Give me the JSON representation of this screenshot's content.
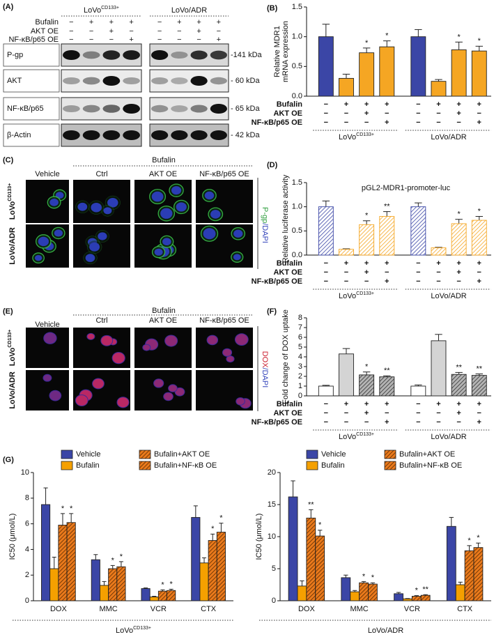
{
  "blot": {
    "panel": "(A)",
    "groups": [
      {
        "name": "LoVo",
        "sup": "CD133+"
      },
      {
        "name": "LoVo/ADR"
      }
    ],
    "rows": [
      {
        "label": "Bufalin",
        "signs": [
          "−",
          "+",
          "+",
          "+"
        ]
      },
      {
        "label": "AKT OE",
        "signs": [
          "−",
          "−",
          "+",
          "−"
        ]
      },
      {
        "label": "NF-κB/p65 OE",
        "signs": [
          "−",
          "−",
          "−",
          "+"
        ]
      }
    ],
    "proteins": [
      {
        "name": "P-gp",
        "size": "-141 kDa"
      },
      {
        "name": "AKT",
        "size": "- 60 kDa"
      },
      {
        "name": "NF-κB/p65",
        "size": "- 65 kDa"
      },
      {
        "name": "β-Actin",
        "size": "- 42 kDa"
      }
    ]
  },
  "images": [
    {
      "panel": "(C)",
      "vehicle": "Vehicle",
      "treatment": "Bufalin",
      "columns": [
        "Ctrl",
        "AKT OE",
        "NF-κB/p65 OE"
      ],
      "rows": [
        {
          "name": "LoVo",
          "sup": "CD133+"
        },
        {
          "name": "LoVo/ADR"
        }
      ],
      "stain": [
        {
          "text": "P-gp",
          "color": "#2a9d3a"
        },
        {
          "text": "/DAPI",
          "color": "#3344bb"
        }
      ]
    },
    {
      "panel": "(E)",
      "vehicle": "Vehicle",
      "treatment": "Bufalin",
      "columns": [
        "Ctrl",
        "AKT OE",
        "NF-κB/p65 OE"
      ],
      "rows": [
        {
          "name": "LoVo",
          "sup": "CD133+"
        },
        {
          "name": "LoVo/ADR"
        }
      ],
      "stain": [
        {
          "text": "DOX",
          "color": "#cc2233"
        },
        {
          "text": "/DAPI",
          "color": "#3344bb"
        }
      ]
    }
  ],
  "chart_data": [
    {
      "type": "bar",
      "panel": "(B)",
      "ylabel": [
        "Relative MDR1",
        "mRNA expression"
      ],
      "ylim": [
        0,
        1.5
      ],
      "yticks": [
        {
          "value": 0,
          "label": "0.0"
        },
        {
          "value": 0.5,
          "label": "0.5"
        },
        {
          "value": 1,
          "label": "1.0"
        },
        {
          "value": 1.5,
          "label": "1.5"
        }
      ],
      "colors": [
        "#3b46a6",
        "#f5a623",
        "#f5a623",
        "#f5a623"
      ],
      "hatch": [
        false,
        false,
        false,
        false
      ],
      "groups": [
        {
          "name": "LoVo",
          "sup": "CD133+",
          "values": [
            1.0,
            0.3,
            0.73,
            0.83
          ],
          "errors": [
            0.21,
            0.07,
            0.08,
            0.1
          ],
          "stars": [
            null,
            null,
            "*",
            "*"
          ]
        },
        {
          "name": "LoVo/ADR",
          "values": [
            1.0,
            0.25,
            0.78,
            0.76
          ],
          "errors": [
            0.12,
            0.03,
            0.13,
            0.08
          ],
          "stars": [
            null,
            null,
            "*",
            "*"
          ]
        }
      ],
      "rows": [
        {
          "label": "Bufalin",
          "signs": [
            "−",
            "+",
            "+",
            "+"
          ]
        },
        {
          "label": "AKT OE",
          "signs": [
            "−",
            "−",
            "+",
            "−"
          ]
        },
        {
          "label": "NF-κB/p65 OE",
          "signs": [
            "−",
            "−",
            "−",
            "+"
          ]
        }
      ]
    },
    {
      "type": "bar",
      "panel": "(D)",
      "title": "pGL2-MDR1-promoter-luc",
      "ylabel": [
        "Relative luciferase activity"
      ],
      "ylim": [
        0,
        1.5
      ],
      "yticks": [
        {
          "value": 0,
          "label": "0.0"
        },
        {
          "value": 0.5,
          "label": "0.5"
        },
        {
          "value": 1,
          "label": "1.0"
        },
        {
          "value": 1.5,
          "label": "1.5"
        }
      ],
      "colors": [
        "#3b46a6",
        "#f5a623",
        "#f5a623",
        "#f5a623"
      ],
      "hatch": [
        true,
        true,
        true,
        true
      ],
      "groups": [
        {
          "name": "LoVo",
          "sup": "CD133+",
          "values": [
            1.0,
            0.12,
            0.63,
            0.8
          ],
          "errors": [
            0.12,
            0.01,
            0.08,
            0.1
          ],
          "stars": [
            null,
            null,
            "*",
            "**"
          ]
        },
        {
          "name": "LoVo/ADR",
          "values": [
            1.0,
            0.15,
            0.65,
            0.72
          ],
          "errors": [
            0.08,
            0.01,
            0.09,
            0.08
          ],
          "stars": [
            null,
            null,
            "*",
            "*"
          ]
        }
      ],
      "rows": [
        {
          "label": "Bufalin",
          "signs": [
            "−",
            "+",
            "+",
            "+"
          ]
        },
        {
          "label": "AKT OE",
          "signs": [
            "−",
            "−",
            "+",
            "−"
          ]
        },
        {
          "label": "NF-κB/p65 OE",
          "signs": [
            "−",
            "−",
            "−",
            "+"
          ]
        }
      ]
    },
    {
      "type": "bar",
      "panel": "(F)",
      "ylabel": [
        "Fold change of DOX uptake"
      ],
      "ylim": [
        0,
        8
      ],
      "yticks": [
        0,
        1,
        2,
        3,
        4,
        5,
        6,
        7,
        8
      ],
      "colors": [
        "#ffffff",
        "#d4d4d4",
        "#b4b4b4",
        "#b4b4b4"
      ],
      "hatch": [
        false,
        false,
        true,
        true
      ],
      "groups": [
        {
          "name": "LoVo",
          "sup": "CD133+",
          "values": [
            1.0,
            4.3,
            2.15,
            1.95
          ],
          "errors": [
            0.08,
            0.55,
            0.3,
            0.1
          ],
          "stars": [
            null,
            null,
            "*",
            "**"
          ]
        },
        {
          "name": "LoVo/ADR",
          "values": [
            1.0,
            5.65,
            2.2,
            2.1
          ],
          "errors": [
            0.12,
            0.65,
            0.2,
            0.15
          ],
          "stars": [
            null,
            null,
            "**",
            "**"
          ]
        }
      ],
      "rows": [
        {
          "label": "Bufalin",
          "signs": [
            "−",
            "+",
            "+",
            "+"
          ]
        },
        {
          "label": "AKT OE",
          "signs": [
            "−",
            "−",
            "+",
            "−"
          ]
        },
        {
          "label": "NF-κB/p65 OE",
          "signs": [
            "−",
            "−",
            "−",
            "+"
          ]
        }
      ]
    },
    {
      "type": "grouped_bar",
      "panel": "(G)",
      "ylabel": [
        "IC50 (μmol/L)"
      ],
      "ylim": [
        0,
        10
      ],
      "yticks": [
        0,
        2,
        4,
        6,
        8,
        10
      ],
      "categories": [
        "DOX",
        "MMC",
        "VCR",
        "CTX"
      ],
      "group": {
        "name": "LoVo",
        "sup": "CD133+"
      },
      "legend": "top",
      "series": [
        {
          "name": "Vehicle",
          "color": "#3b46a6",
          "hatch": false,
          "values": [
            7.5,
            3.2,
            0.95,
            6.5
          ],
          "errors": [
            1.3,
            0.4,
            0.05,
            0.9
          ],
          "stars": [
            null,
            null,
            null,
            null
          ]
        },
        {
          "name": "Bufalin",
          "color": "#f5a000",
          "hatch": false,
          "values": [
            2.5,
            1.2,
            0.3,
            2.95
          ],
          "errors": [
            0.9,
            0.3,
            0.05,
            0.4
          ],
          "stars": [
            null,
            null,
            null,
            null
          ]
        },
        {
          "name": "Bufalin+AKT OE",
          "color": "#ea7a1c",
          "hatch": true,
          "values": [
            5.9,
            2.5,
            0.75,
            4.7
          ],
          "errors": [
            0.9,
            0.25,
            0.1,
            0.5
          ],
          "stars": [
            "*",
            "*",
            "*",
            "*"
          ]
        },
        {
          "name": "Bufalin+NF-κB OE",
          "color": "#ea7a1c",
          "hatch": true,
          "values": [
            6.1,
            2.65,
            0.8,
            5.35
          ],
          "errors": [
            0.7,
            0.4,
            0.1,
            0.7
          ],
          "stars": [
            "*",
            "*",
            "*",
            "*"
          ]
        }
      ]
    },
    {
      "type": "grouped_bar",
      "ylabel": [
        "IC50 (μmol/L)"
      ],
      "ylim": [
        0,
        20
      ],
      "yticks": [
        0,
        5,
        10,
        15,
        20
      ],
      "categories": [
        "DOX",
        "MMC",
        "VCR",
        "CTX"
      ],
      "group": {
        "name": "LoVo/ADR"
      },
      "legend": "top",
      "series": [
        {
          "name": "Vehicle",
          "color": "#3b46a6",
          "hatch": false,
          "values": [
            16.2,
            3.6,
            1.1,
            11.6
          ],
          "errors": [
            2.5,
            0.4,
            0.2,
            1.4
          ],
          "stars": [
            null,
            null,
            null,
            null
          ]
        },
        {
          "name": "Bufalin",
          "color": "#f5a000",
          "hatch": false,
          "values": [
            2.3,
            1.4,
            0.3,
            2.5
          ],
          "errors": [
            0.8,
            0.2,
            0.05,
            0.4
          ],
          "stars": [
            null,
            null,
            null,
            null
          ]
        },
        {
          "name": "Bufalin+AKT OE",
          "color": "#ea7a1c",
          "hatch": true,
          "values": [
            12.9,
            2.8,
            0.7,
            7.8
          ],
          "errors": [
            1.3,
            0.2,
            0.1,
            0.8
          ],
          "stars": [
            "**",
            "*",
            "*",
            "*"
          ]
        },
        {
          "name": "Bufalin+NF-κB OE",
          "color": "#ea7a1c",
          "hatch": true,
          "values": [
            10.1,
            2.6,
            0.85,
            8.3
          ],
          "errors": [
            0.9,
            0.2,
            0.1,
            0.7
          ],
          "stars": [
            "*",
            "*",
            "**",
            "*"
          ]
        }
      ]
    }
  ]
}
